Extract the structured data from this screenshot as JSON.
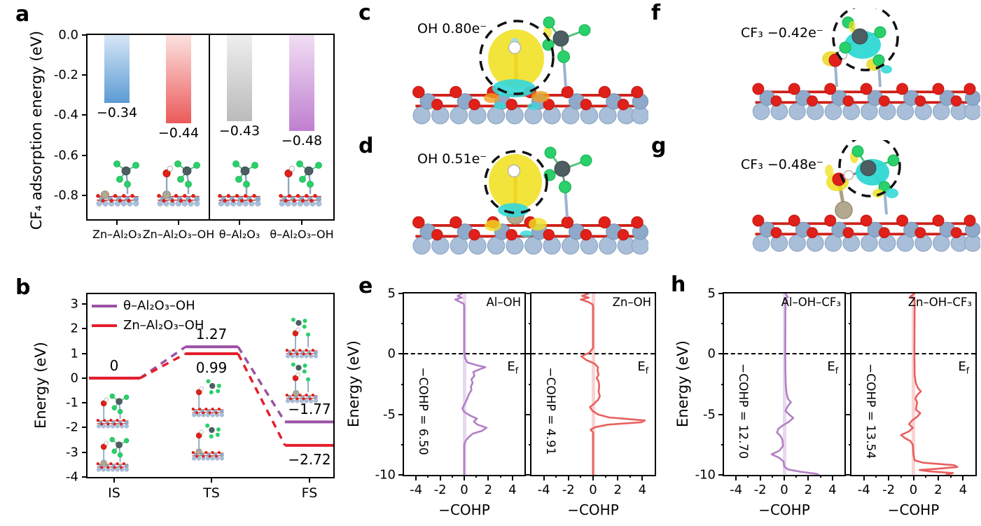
{
  "panels": {
    "a": {
      "label": "a"
    },
    "b": {
      "label": "b"
    },
    "c": {
      "label": "c",
      "annotation": "OH 0.80e⁻"
    },
    "d": {
      "label": "d",
      "annotation": "OH 0.51e⁻"
    },
    "e": {
      "label": "e"
    },
    "f": {
      "label": "f",
      "annotation": "CF₃ −0.42e⁻"
    },
    "g": {
      "label": "g",
      "annotation": "CF₃ −0.48e⁻"
    },
    "h": {
      "label": "h"
    }
  },
  "fermi_label": {
    "base": "E",
    "sub": "f"
  },
  "chart_data": [
    {
      "id": "adsorption-bars",
      "type": "bar",
      "ylabel": "CF₄ adsorption energy (eV)",
      "categories": [
        "Zn–Al₂O₃",
        "Zn–Al₂O₃–OH",
        "θ–Al₂O₃",
        "θ–Al₂O₃–OH"
      ],
      "values": [
        -0.34,
        -0.44,
        -0.43,
        -0.48
      ],
      "value_labels": [
        "−0.34",
        "−0.44",
        "−0.43",
        "−0.48"
      ],
      "bar_gradients": [
        [
          "#d7e6f6",
          "#5b9bd5"
        ],
        [
          "#fbe2e0",
          "#ec5a5a"
        ],
        [
          "#eeeeee",
          "#bcbbbb"
        ],
        [
          "#f1def4",
          "#c07fd0"
        ]
      ],
      "ylim": [
        -0.92,
        0
      ],
      "yticks": [
        0,
        -0.2,
        -0.4,
        -0.6,
        -0.8
      ],
      "ytick_labels": [
        "0.0",
        "-0.2",
        "-0.4",
        "-0.6",
        "-0.8"
      ],
      "divider_after": 2
    },
    {
      "id": "energy-diagram",
      "type": "line",
      "ylabel": "Energy (eV)",
      "categories": [
        "IS",
        "TS",
        "FS"
      ],
      "ylim": [
        -4,
        3.4
      ],
      "yticks": [
        3,
        2,
        1,
        0,
        -1,
        -2,
        -3,
        -4
      ],
      "series": [
        {
          "name": "θ–Al₂O₃–OH",
          "color": "#9b51a5",
          "values": [
            0,
            1.27,
            -1.77
          ]
        },
        {
          "name": "Zn–Al₂O₃–OH",
          "color": "#e41e2b",
          "values": [
            0,
            0.99,
            -2.72
          ]
        }
      ],
      "level_labels": [
        {
          "text": "0",
          "step": 0,
          "series": 0,
          "placement": "above"
        },
        {
          "text": "1.27",
          "step": 1,
          "series": 0,
          "placement": "above"
        },
        {
          "text": "0.99",
          "step": 1,
          "series": 1,
          "placement": "below"
        },
        {
          "text": "−1.77",
          "step": 2,
          "series": 0,
          "placement": "above"
        },
        {
          "text": "−2.72",
          "step": 2,
          "series": 1,
          "placement": "below"
        }
      ]
    },
    {
      "id": "cohp-al-oh",
      "type": "line",
      "title": "Al–OH",
      "xlabel": "−COHP",
      "ylabel": "Energy (eV)",
      "annotation": "−COHP = 6.50",
      "color": "#b27fc6",
      "band_color": "rgba(178,127,198,0.30)",
      "xlim": [
        -5,
        5
      ],
      "ylim": [
        -10,
        5
      ],
      "xticks": [
        -4,
        -2,
        0,
        2,
        4
      ],
      "yticks": [
        5,
        0,
        -5,
        -10
      ],
      "fermi": 0,
      "points": [
        [
          5,
          -0.15
        ],
        [
          4.8,
          -0.55
        ],
        [
          4.65,
          -0.2
        ],
        [
          4.5,
          -0.75
        ],
        [
          4.3,
          -0.35
        ],
        [
          4.15,
          -0.05
        ],
        [
          4.0,
          0
        ],
        [
          0.2,
          0
        ],
        [
          -0.3,
          0.05
        ],
        [
          -0.7,
          0.25
        ],
        [
          -0.95,
          1.1
        ],
        [
          -1.1,
          1.75
        ],
        [
          -1.3,
          1.2
        ],
        [
          -1.5,
          0.75
        ],
        [
          -1.8,
          0.85
        ],
        [
          -2.1,
          0.6
        ],
        [
          -2.4,
          0.7
        ],
        [
          -2.7,
          0.55
        ],
        [
          -3.0,
          0.6
        ],
        [
          -3.3,
          0.4
        ],
        [
          -3.7,
          0.25
        ],
        [
          -4.1,
          0.05
        ],
        [
          -4.5,
          -0.15
        ],
        [
          -4.8,
          0.0
        ],
        [
          -5.1,
          0.5
        ],
        [
          -5.35,
          1.05
        ],
        [
          -5.6,
          0.8
        ],
        [
          -5.85,
          1.1
        ],
        [
          -6.1,
          1.85
        ],
        [
          -6.35,
          1.5
        ],
        [
          -6.6,
          0.7
        ],
        [
          -6.9,
          0.35
        ],
        [
          -7.2,
          0.1
        ],
        [
          -7.5,
          0
        ],
        [
          -10,
          0
        ]
      ]
    },
    {
      "id": "cohp-zn-oh",
      "type": "line",
      "title": "Zn–OH",
      "xlabel": "−COHP",
      "annotation": "−COHP = 4.91",
      "color": "#e86060",
      "band_color": "rgba(232,96,96,0.28)",
      "xlim": [
        -5,
        5
      ],
      "ylim": [
        -10,
        5
      ],
      "xticks": [
        -4,
        -2,
        0,
        2,
        4
      ],
      "yticks": [
        5,
        0,
        -5,
        -10
      ],
      "fermi": 0,
      "points": [
        [
          5,
          -0.35
        ],
        [
          4.8,
          -0.9
        ],
        [
          4.65,
          -0.35
        ],
        [
          4.5,
          -1.0
        ],
        [
          4.3,
          -0.4
        ],
        [
          4.1,
          -0.05
        ],
        [
          3.9,
          0
        ],
        [
          0.5,
          0
        ],
        [
          0.1,
          -0.3
        ],
        [
          -0.2,
          -0.95
        ],
        [
          -0.5,
          -0.55
        ],
        [
          -0.8,
          0.1
        ],
        [
          -1.1,
          0.4
        ],
        [
          -1.4,
          0.35
        ],
        [
          -1.7,
          0.45
        ],
        [
          -2.0,
          0.3
        ],
        [
          -2.3,
          0.45
        ],
        [
          -2.7,
          0.5
        ],
        [
          -3.1,
          0.45
        ],
        [
          -3.5,
          0.55
        ],
        [
          -3.8,
          0.4
        ],
        [
          -4.1,
          0.1
        ],
        [
          -4.4,
          -0.25
        ],
        [
          -4.7,
          -0.05
        ],
        [
          -5.0,
          0.4
        ],
        [
          -5.25,
          1.3
        ],
        [
          -5.5,
          4.2
        ],
        [
          -5.65,
          3.9
        ],
        [
          -5.85,
          1.2
        ],
        [
          -6.05,
          0.2
        ],
        [
          -6.25,
          -0.2
        ],
        [
          -6.5,
          0
        ],
        [
          -10,
          0
        ]
      ]
    },
    {
      "id": "cohp-al-oh-cf3",
      "type": "line",
      "title": "Al–OH–CF₃",
      "xlabel": "−COHP",
      "ylabel": "Energy (eV)",
      "annotation": "−COHP = 12.70",
      "color": "#b27fc6",
      "band_color": "rgba(178,127,198,0.30)",
      "xlim": [
        -5,
        5
      ],
      "ylim": [
        -10,
        5
      ],
      "xticks": [
        -4,
        -2,
        0,
        2,
        4
      ],
      "yticks": [
        5,
        0,
        -5,
        -10
      ],
      "fermi": 0,
      "points": [
        [
          5,
          0.1
        ],
        [
          4.7,
          0.3
        ],
        [
          4.55,
          0.0
        ],
        [
          4.4,
          0.25
        ],
        [
          4.2,
          0.1
        ],
        [
          0,
          0.08
        ],
        [
          -1.5,
          0.1
        ],
        [
          -2.5,
          0.12
        ],
        [
          -3.2,
          0.18
        ],
        [
          -3.7,
          0.3
        ],
        [
          -4.0,
          0.55
        ],
        [
          -4.3,
          0.3
        ],
        [
          -4.7,
          0.1
        ],
        [
          -5.0,
          0.4
        ],
        [
          -5.3,
          0.75
        ],
        [
          -5.6,
          0.4
        ],
        [
          -5.9,
          -0.1
        ],
        [
          -6.2,
          -0.5
        ],
        [
          -6.5,
          -0.6
        ],
        [
          -6.8,
          -0.3
        ],
        [
          -7.1,
          -0.15
        ],
        [
          -7.6,
          -0.1
        ],
        [
          -8.0,
          -0.4
        ],
        [
          -8.3,
          -1.05
        ],
        [
          -8.6,
          -0.4
        ],
        [
          -8.9,
          -0.05
        ],
        [
          -9.3,
          0.0
        ],
        [
          -9.55,
          0.3
        ],
        [
          -9.75,
          1.4
        ],
        [
          -9.9,
          2.6
        ],
        [
          -10,
          2.9
        ]
      ]
    },
    {
      "id": "cohp-zn-oh-cf3",
      "type": "line",
      "title": "Zn–OH–CF₃",
      "xlabel": "−COHP",
      "annotation": "−COHP = 13.54",
      "color": "#e86060",
      "band_color": "rgba(232,96,96,0.28)",
      "xlim": [
        -5,
        5
      ],
      "ylim": [
        -10,
        5
      ],
      "xticks": [
        -4,
        -2,
        0,
        2,
        4
      ],
      "yticks": [
        5,
        0,
        -5,
        -10
      ],
      "fermi": 0,
      "points": [
        [
          5,
          0.1
        ],
        [
          4.75,
          -0.25
        ],
        [
          4.6,
          0.05
        ],
        [
          4.4,
          0.1
        ],
        [
          0,
          0.08
        ],
        [
          -1.8,
          0.1
        ],
        [
          -2.4,
          0.2
        ],
        [
          -2.8,
          0.35
        ],
        [
          -3.1,
          0.6
        ],
        [
          -3.4,
          0.3
        ],
        [
          -3.7,
          0.15
        ],
        [
          -4.0,
          0.3
        ],
        [
          -4.3,
          0.25
        ],
        [
          -4.6,
          0.2
        ],
        [
          -4.9,
          0.55
        ],
        [
          -5.2,
          0.3
        ],
        [
          -5.5,
          -0.1
        ],
        [
          -5.8,
          -0.35
        ],
        [
          -6.1,
          -0.05
        ],
        [
          -6.4,
          -0.35
        ],
        [
          -6.7,
          -1.0
        ],
        [
          -6.95,
          -0.7
        ],
        [
          -7.2,
          -0.25
        ],
        [
          -7.5,
          -0.05
        ],
        [
          -8.3,
          0
        ],
        [
          -8.8,
          0.1
        ],
        [
          -9.0,
          0.8
        ],
        [
          -9.2,
          3.3
        ],
        [
          -9.35,
          3.55
        ],
        [
          -9.5,
          1.8
        ],
        [
          -9.6,
          0.5
        ],
        [
          -9.7,
          1.2
        ],
        [
          -9.85,
          3.2
        ],
        [
          -10,
          2.6
        ]
      ]
    }
  ]
}
